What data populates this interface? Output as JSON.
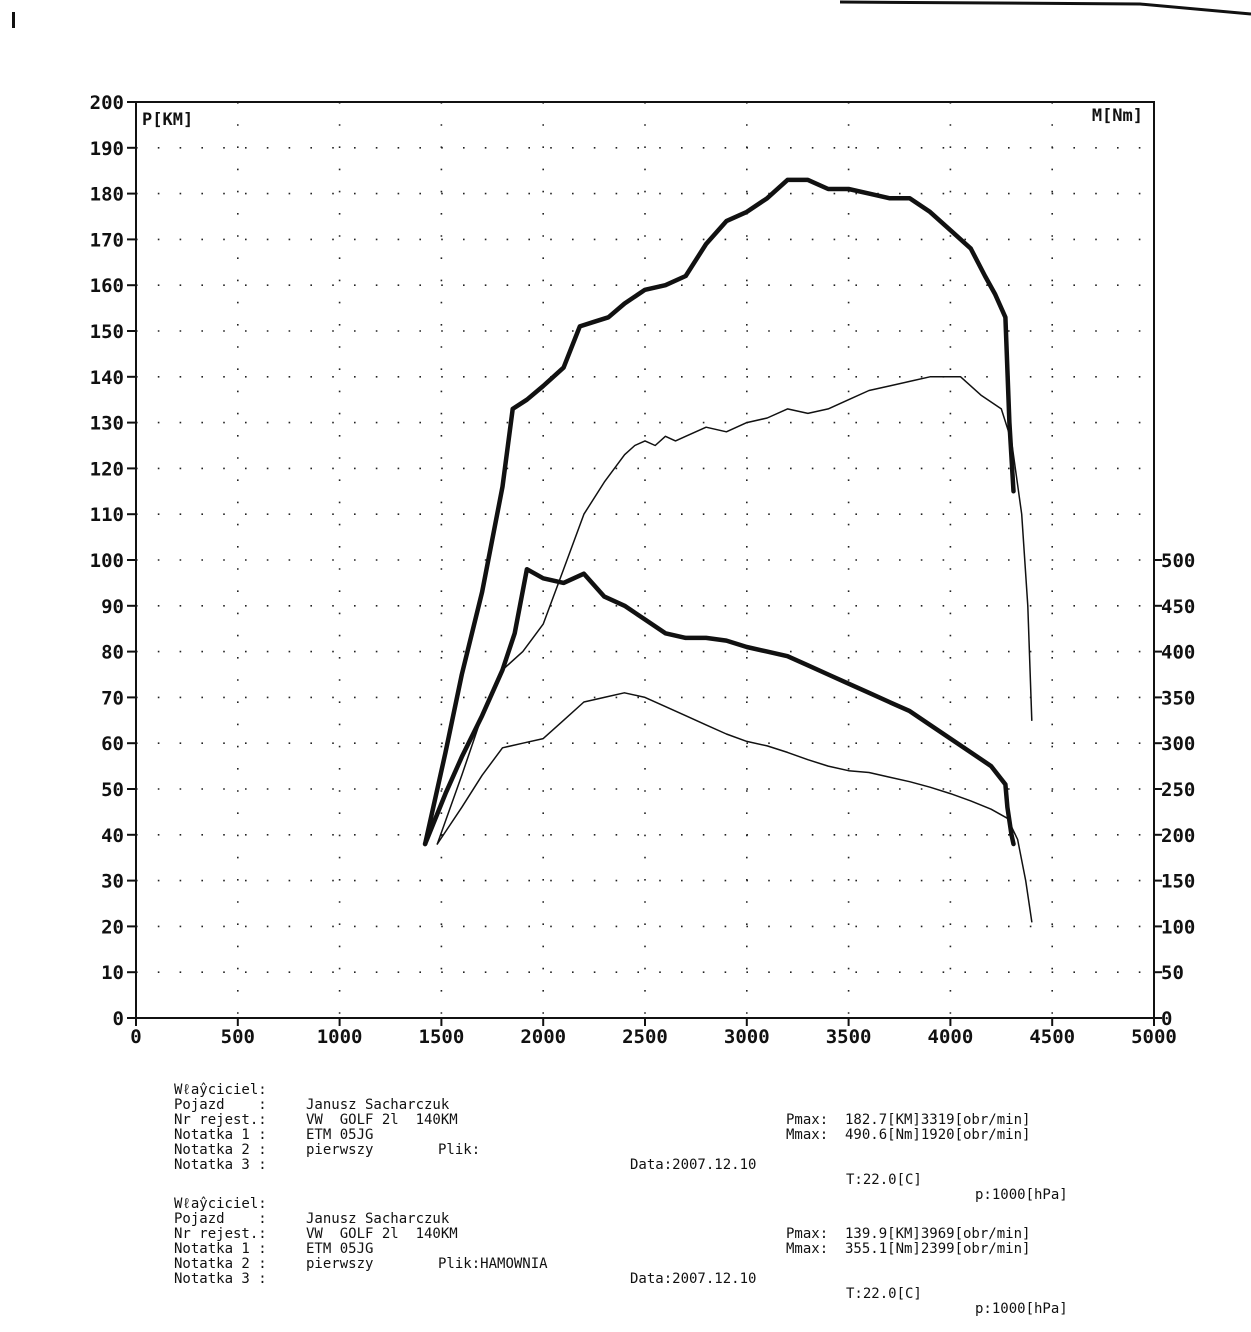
{
  "chart_data": {
    "type": "line",
    "left_axis_title": "P[KM]",
    "right_axis_title": "M[Nm]",
    "xlim": [
      0,
      5000
    ],
    "x_ticks": [
      "0",
      "500",
      "1000",
      "1500",
      "2000",
      "2500",
      "3000",
      "3500",
      "4000",
      "4500",
      "5000"
    ],
    "left_ylim": [
      0,
      200
    ],
    "left_ticks": [
      "0",
      "10",
      "20",
      "30",
      "40",
      "50",
      "60",
      "70",
      "80",
      "90",
      "100",
      "110",
      "120",
      "130",
      "140",
      "150",
      "160",
      "170",
      "180",
      "190",
      "200"
    ],
    "right_ylim": [
      0,
      1000
    ],
    "right_ticks": [
      "0",
      "50",
      "100",
      "150",
      "200",
      "250",
      "300",
      "350",
      "400",
      "450",
      "500"
    ],
    "grid": true,
    "series": [
      {
        "axis": "left",
        "style": "thick",
        "x": [
          1420,
          1520,
          1600,
          1700,
          1800,
          1850,
          1920,
          2000,
          2100,
          2180,
          2250,
          2320,
          2400,
          2500,
          2600,
          2700,
          2800,
          2900,
          3000,
          3100,
          3200,
          3300,
          3400,
          3500,
          3600,
          3700,
          3800,
          3900,
          4000,
          4100,
          4170,
          4220,
          4270,
          4290,
          4310
        ],
        "y": [
          38,
          58,
          75,
          93,
          116,
          133,
          135,
          138,
          142,
          151,
          152,
          153,
          156,
          159,
          160,
          162,
          169,
          174,
          176,
          179,
          183,
          183,
          181,
          181,
          180,
          179,
          179,
          176,
          172,
          168,
          162,
          158,
          153,
          130,
          115
        ]
      },
      {
        "axis": "left",
        "style": "thin",
        "x": [
          1480,
          1600,
          1700,
          1800,
          1900,
          2000,
          2100,
          2200,
          2300,
          2400,
          2450,
          2500,
          2550,
          2600,
          2650,
          2700,
          2800,
          2900,
          3000,
          3100,
          3200,
          3300,
          3400,
          3500,
          3600,
          3700,
          3800,
          3900,
          3969,
          4050,
          4150,
          4250,
          4300,
          4350,
          4380,
          4400
        ],
        "y": [
          38,
          53,
          66,
          76,
          80,
          86,
          98,
          110,
          117,
          123,
          125,
          126,
          125,
          127,
          126,
          127,
          129,
          128,
          130,
          131,
          133,
          132,
          133,
          135,
          137,
          138,
          139,
          140,
          140,
          140,
          136,
          133,
          126,
          110,
          90,
          65
        ]
      },
      {
        "axis": "right",
        "style": "thick",
        "x": [
          1420,
          1520,
          1600,
          1700,
          1800,
          1860,
          1920,
          2000,
          2100,
          2200,
          2300,
          2400,
          2500,
          2600,
          2700,
          2800,
          2900,
          3000,
          3100,
          3200,
          3300,
          3400,
          3500,
          3600,
          3700,
          3800,
          3900,
          4000,
          4100,
          4200,
          4270,
          4280,
          4300,
          4310
        ],
        "y": [
          190,
          245,
          285,
          330,
          380,
          420,
          490,
          480,
          475,
          485,
          460,
          450,
          435,
          420,
          415,
          415,
          412,
          405,
          400,
          395,
          385,
          375,
          365,
          355,
          345,
          335,
          320,
          305,
          290,
          275,
          255,
          230,
          200,
          190
        ]
      },
      {
        "axis": "right",
        "style": "thin",
        "x": [
          1480,
          1600,
          1700,
          1800,
          1900,
          2000,
          2100,
          2200,
          2300,
          2399,
          2500,
          2600,
          2700,
          2800,
          2900,
          3000,
          3100,
          3200,
          3300,
          3400,
          3500,
          3600,
          3700,
          3800,
          3900,
          4000,
          4100,
          4200,
          4280,
          4330,
          4370,
          4400
        ],
        "y": [
          190,
          230,
          265,
          295,
          300,
          305,
          325,
          345,
          350,
          355,
          350,
          340,
          330,
          320,
          310,
          302,
          297,
          290,
          282,
          275,
          270,
          268,
          263,
          258,
          252,
          245,
          237,
          228,
          218,
          195,
          150,
          105
        ]
      }
    ]
  },
  "info_blocks": [
    {
      "owner_label": "Wℓaŷciciel:",
      "owner": "Janusz Sacharczuk",
      "vehicle_label": "Pojazd    :",
      "vehicle": "VW  GOLF 2l  140KM",
      "reg_label": "Nr rejest.:",
      "reg": "ETM 05JG",
      "file_label": "Plik:",
      "file": "",
      "note1_label": "Notatka 1 :",
      "note1": "pierwszy",
      "note2_label": "Notatka 2 :",
      "note3_label": "Notatka 3 :",
      "pmax": "Pmax:  182.7[KM]3319[obr/min]",
      "mmax": "Mmax:  490.6[Nm]1920[obr/min]",
      "date": "Data:2007.12.10",
      "temp": "T:22.0[C]",
      "pressure": "p:1000[hPa]"
    },
    {
      "owner_label": "Wℓaŷciciel:",
      "owner": "Janusz Sacharczuk",
      "vehicle_label": "Pojazd    :",
      "vehicle": "VW  GOLF 2l  140KM",
      "reg_label": "Nr rejest.:",
      "reg": "ETM 05JG",
      "file_label": "Plik:",
      "file": "HAMOWNIA",
      "note1_label": "Notatka 1 :",
      "note1": "pierwszy",
      "note2_label": "Notatka 2 :",
      "note3_label": "Notatka 3 :",
      "pmax": "Pmax:  139.9[KM]3969[obr/min]",
      "mmax": "Mmax:  355.1[Nm]2399[obr/min]",
      "date": "Data:2007.12.10",
      "temp": "T:22.0[C]",
      "pressure": "p:1000[hPa]"
    }
  ]
}
